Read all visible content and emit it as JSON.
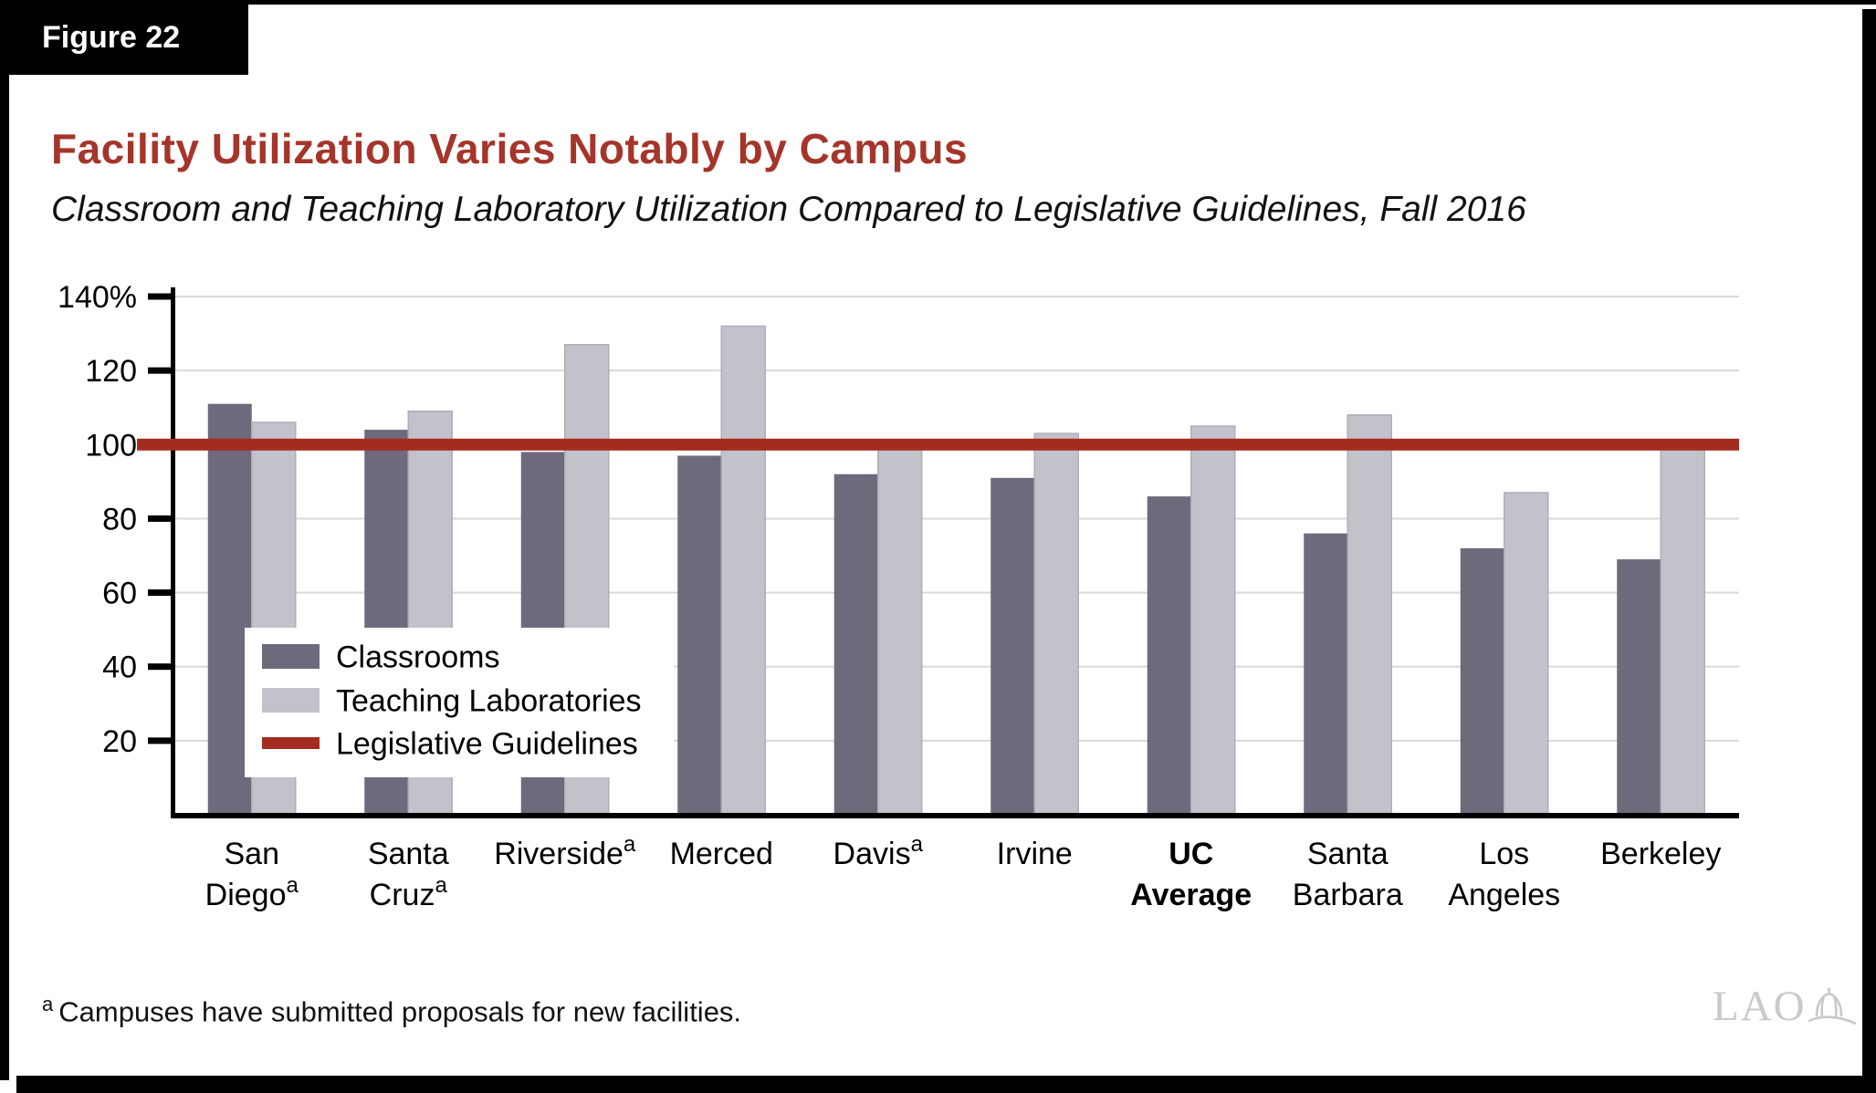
{
  "figure_label": "Figure 22",
  "chart_data": {
    "type": "bar",
    "title": "Facility Utilization Varies Notably by Campus",
    "subtitle": "Classroom and Teaching Laboratory Utilization Compared to Legislative Guidelines, Fall 2016",
    "categories": [
      {
        "label_lines": [
          "San",
          "Diego"
        ],
        "superscript": "a",
        "bold": false
      },
      {
        "label_lines": [
          "Santa",
          "Cruz"
        ],
        "superscript": "a",
        "bold": false
      },
      {
        "label_lines": [
          "Riverside"
        ],
        "superscript": "a",
        "bold": false
      },
      {
        "label_lines": [
          "Merced"
        ],
        "superscript": null,
        "bold": false
      },
      {
        "label_lines": [
          "Davis"
        ],
        "superscript": "a",
        "bold": false
      },
      {
        "label_lines": [
          "Irvine"
        ],
        "superscript": null,
        "bold": false
      },
      {
        "label_lines": [
          "UC",
          "Average"
        ],
        "superscript": null,
        "bold": true
      },
      {
        "label_lines": [
          "Santa",
          "Barbara"
        ],
        "superscript": null,
        "bold": false
      },
      {
        "label_lines": [
          "Los",
          "Angeles"
        ],
        "superscript": null,
        "bold": false
      },
      {
        "label_lines": [
          "Berkeley"
        ],
        "superscript": null,
        "bold": false
      }
    ],
    "series": [
      {
        "name": "Classrooms",
        "color": "#6E697B",
        "values": [
          111,
          104,
          98,
          97,
          92,
          91,
          86,
          76,
          72,
          69
        ]
      },
      {
        "name": "Teaching Laboratories",
        "color": "#C3C1C9",
        "values": [
          106,
          109,
          127,
          132,
          99,
          103,
          105,
          108,
          87,
          99
        ]
      }
    ],
    "guideline": {
      "name": "Legislative Guidelines",
      "value": 100,
      "color": "#A32C21"
    },
    "yticks": [
      {
        "value": 20,
        "label": "20"
      },
      {
        "value": 40,
        "label": "40"
      },
      {
        "value": 60,
        "label": "60"
      },
      {
        "value": 80,
        "label": "80"
      },
      {
        "value": 100,
        "label": "100"
      },
      {
        "value": 120,
        "label": "120"
      },
      {
        "value": 140,
        "label": "140%"
      }
    ],
    "ylim": [
      0,
      140
    ],
    "grid": true,
    "legend_position": "inside-lower-left"
  },
  "footnote": {
    "marker": "a",
    "text": "Campuses have submitted proposals for new facilities."
  },
  "logo": {
    "text": "LAO",
    "icon": "capitol-dome-icon"
  },
  "colors": {
    "title_red": "#A5352A",
    "guideline_red": "#A32C21",
    "classrooms_bar": "#6E697B",
    "labs_bar": "#C3C1C9",
    "grid": "#D9D9D9",
    "axis": "#000000",
    "page_border": "#000000",
    "logo_gray": "#C8C8CD"
  }
}
